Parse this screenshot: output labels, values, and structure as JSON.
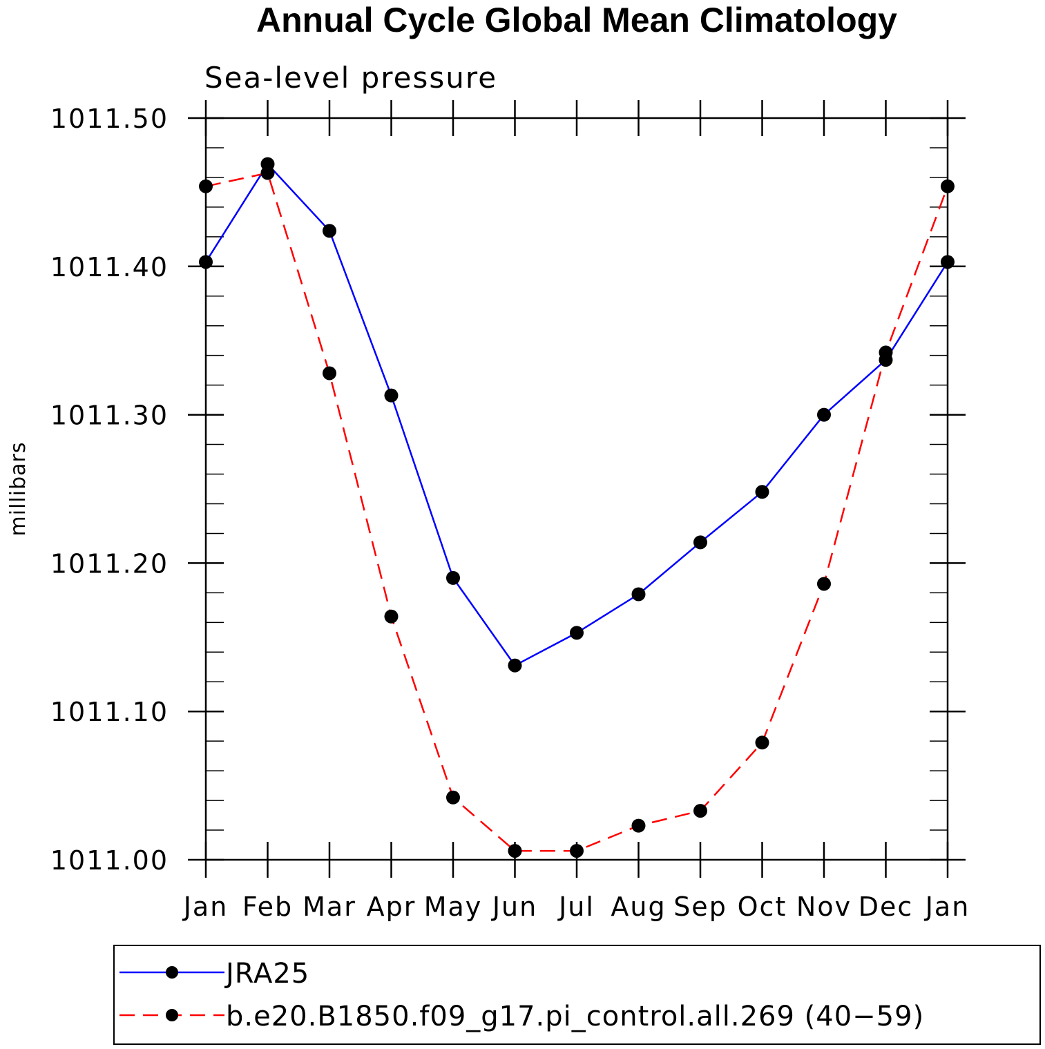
{
  "chart_data": {
    "type": "line",
    "title": "Annual Cycle Global Mean Climatology",
    "subtitle": "Sea-level pressure",
    "xlabel": "",
    "ylabel": "millibars",
    "categories": [
      "Jan",
      "Feb",
      "Mar",
      "Apr",
      "May",
      "Jun",
      "Jul",
      "Aug",
      "Sep",
      "Oct",
      "Nov",
      "Dec",
      "Jan"
    ],
    "ylim": [
      1011.0,
      1011.5
    ],
    "yticks": [
      "1011.00",
      "1011.10",
      "1011.20",
      "1011.30",
      "1011.40",
      "1011.50"
    ],
    "series": [
      {
        "name": "JRA25",
        "color": "#0000ff",
        "dash": "solid",
        "values": [
          1011.403,
          1011.469,
          1011.424,
          1011.313,
          1011.19,
          1011.131,
          1011.153,
          1011.179,
          1011.214,
          1011.248,
          1011.3,
          1011.337,
          1011.403
        ]
      },
      {
        "name": "b.e20.B1850.f09_g17.pi_control.all.269 (40−59)",
        "color": "#ff0000",
        "dash": "dashed",
        "values": [
          1011.454,
          1011.463,
          1011.328,
          1011.164,
          1011.042,
          1011.006,
          1011.006,
          1011.023,
          1011.033,
          1011.079,
          1011.186,
          1011.342,
          1011.454
        ]
      }
    ],
    "legend_position": "bottom"
  }
}
